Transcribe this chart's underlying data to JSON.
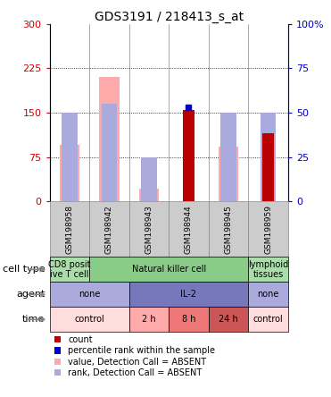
{
  "title": "GDS3191 / 218413_s_at",
  "samples": [
    "GSM198958",
    "GSM198942",
    "GSM198943",
    "GSM198944",
    "GSM198945",
    "GSM198959"
  ],
  "count_values": [
    null,
    null,
    null,
    155,
    null,
    115
  ],
  "count_color": "#bb0000",
  "percentile_values": [
    null,
    null,
    null,
    53,
    null,
    null
  ],
  "percentile_color": "#0000cc",
  "value_absent": [
    95,
    210,
    22,
    null,
    92,
    null
  ],
  "value_absent_color": "#ffaaaa",
  "rank_absent": [
    50,
    55,
    25,
    null,
    50,
    50
  ],
  "rank_absent_color": "#aaaadd",
  "ylim_left": [
    0,
    300
  ],
  "ylim_right": [
    0,
    100
  ],
  "yticks_left": [
    0,
    75,
    150,
    225,
    300
  ],
  "yticks_right": [
    0,
    25,
    50,
    75,
    100
  ],
  "ytick_labels_left": [
    "0",
    "75",
    "150",
    "225",
    "300"
  ],
  "ytick_labels_right": [
    "0",
    "25",
    "50",
    "75",
    "100%"
  ],
  "left_axis_color": "#cc0000",
  "right_axis_color": "#0000bb",
  "cell_types": [
    {
      "label": "CD8 posit\nive T cell",
      "cols": [
        0,
        1
      ],
      "color": "#aaddaa"
    },
    {
      "label": "Natural killer cell",
      "cols": [
        1,
        5
      ],
      "color": "#88cc88"
    },
    {
      "label": "lymphoid\ntissues",
      "cols": [
        5,
        6
      ],
      "color": "#aaddaa"
    }
  ],
  "agents": [
    {
      "label": "none",
      "cols": [
        0,
        2
      ],
      "color": "#aaaadd"
    },
    {
      "label": "IL-2",
      "cols": [
        2,
        5
      ],
      "color": "#7777bb"
    },
    {
      "label": "none",
      "cols": [
        5,
        6
      ],
      "color": "#aaaadd"
    }
  ],
  "times": [
    {
      "label": "control",
      "cols": [
        0,
        2
      ],
      "color": "#ffdddd"
    },
    {
      "label": "2 h",
      "cols": [
        2,
        3
      ],
      "color": "#ffaaaa"
    },
    {
      "label": "8 h",
      "cols": [
        3,
        4
      ],
      "color": "#ee7777"
    },
    {
      "label": "24 h",
      "cols": [
        4,
        5
      ],
      "color": "#cc5555"
    },
    {
      "label": "control",
      "cols": [
        5,
        6
      ],
      "color": "#ffdddd"
    }
  ],
  "row_labels": [
    "cell type",
    "agent",
    "time"
  ],
  "legend_items": [
    {
      "color": "#bb0000",
      "label": "count",
      "square": true
    },
    {
      "color": "#0000cc",
      "label": "percentile rank within the sample",
      "square": true
    },
    {
      "color": "#ffaaaa",
      "label": "value, Detection Call = ABSENT",
      "square": true
    },
    {
      "color": "#aaaadd",
      "label": "rank, Detection Call = ABSENT",
      "square": true
    }
  ],
  "bar_width": 0.5,
  "rank_bar_width": 0.4,
  "count_bar_width": 0.3
}
